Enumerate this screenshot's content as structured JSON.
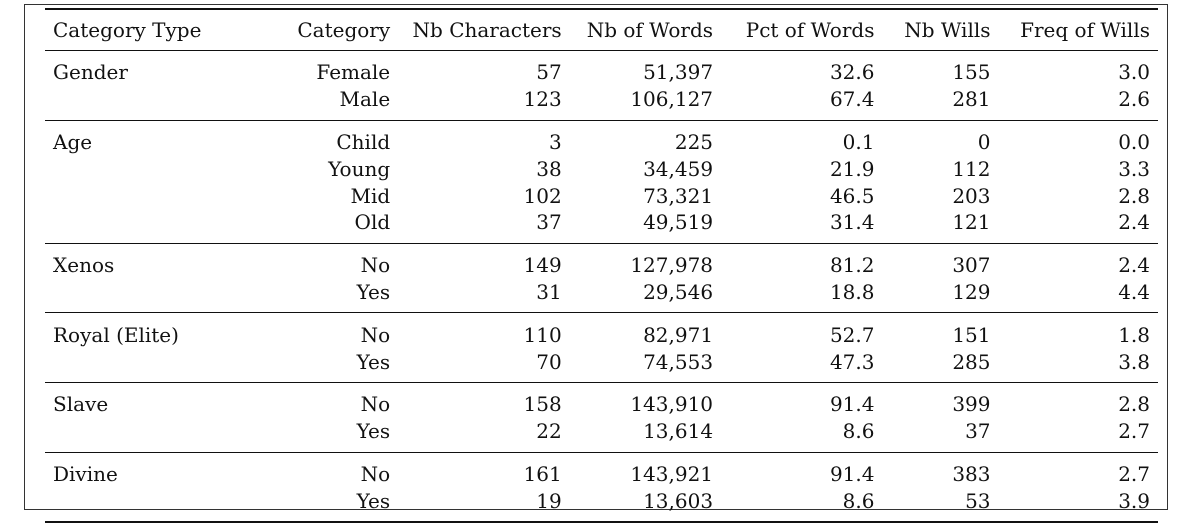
{
  "table": {
    "headers": [
      "Category Type",
      "Category",
      "Nb Characters",
      "Nb of Words",
      "Pct of Words",
      "Nb Wills",
      "Freq of Wills"
    ],
    "groups": [
      {
        "type": "Gender",
        "rows": [
          {
            "category": "Female",
            "nb_characters": "57",
            "nb_words": "51,397",
            "pct_words": "32.6",
            "nb_wills": "155",
            "freq_wills": "3.0"
          },
          {
            "category": "Male",
            "nb_characters": "123",
            "nb_words": "106,127",
            "pct_words": "67.4",
            "nb_wills": "281",
            "freq_wills": "2.6"
          }
        ]
      },
      {
        "type": "Age",
        "rows": [
          {
            "category": "Child",
            "nb_characters": "3",
            "nb_words": "225",
            "pct_words": "0.1",
            "nb_wills": "0",
            "freq_wills": "0.0"
          },
          {
            "category": "Young",
            "nb_characters": "38",
            "nb_words": "34,459",
            "pct_words": "21.9",
            "nb_wills": "112",
            "freq_wills": "3.3"
          },
          {
            "category": "Mid",
            "nb_characters": "102",
            "nb_words": "73,321",
            "pct_words": "46.5",
            "nb_wills": "203",
            "freq_wills": "2.8"
          },
          {
            "category": "Old",
            "nb_characters": "37",
            "nb_words": "49,519",
            "pct_words": "31.4",
            "nb_wills": "121",
            "freq_wills": "2.4"
          }
        ]
      },
      {
        "type": "Xenos",
        "rows": [
          {
            "category": "No",
            "nb_characters": "149",
            "nb_words": "127,978",
            "pct_words": "81.2",
            "nb_wills": "307",
            "freq_wills": "2.4"
          },
          {
            "category": "Yes",
            "nb_characters": "31",
            "nb_words": "29,546",
            "pct_words": "18.8",
            "nb_wills": "129",
            "freq_wills": "4.4"
          }
        ]
      },
      {
        "type": "Royal (Elite)",
        "rows": [
          {
            "category": "No",
            "nb_characters": "110",
            "nb_words": "82,971",
            "pct_words": "52.7",
            "nb_wills": "151",
            "freq_wills": "1.8"
          },
          {
            "category": "Yes",
            "nb_characters": "70",
            "nb_words": "74,553",
            "pct_words": "47.3",
            "nb_wills": "285",
            "freq_wills": "3.8"
          }
        ]
      },
      {
        "type": "Slave",
        "rows": [
          {
            "category": "No",
            "nb_characters": "158",
            "nb_words": "143,910",
            "pct_words": "91.4",
            "nb_wills": "399",
            "freq_wills": "2.8"
          },
          {
            "category": "Yes",
            "nb_characters": "22",
            "nb_words": "13,614",
            "pct_words": "8.6",
            "nb_wills": "37",
            "freq_wills": "2.7"
          }
        ]
      },
      {
        "type": "Divine",
        "rows": [
          {
            "category": "No",
            "nb_characters": "161",
            "nb_words": "143,921",
            "pct_words": "91.4",
            "nb_wills": "383",
            "freq_wills": "2.7"
          },
          {
            "category": "Yes",
            "nb_characters": "19",
            "nb_words": "13,603",
            "pct_words": "8.6",
            "nb_wills": "53",
            "freq_wills": "3.9"
          }
        ]
      }
    ]
  }
}
